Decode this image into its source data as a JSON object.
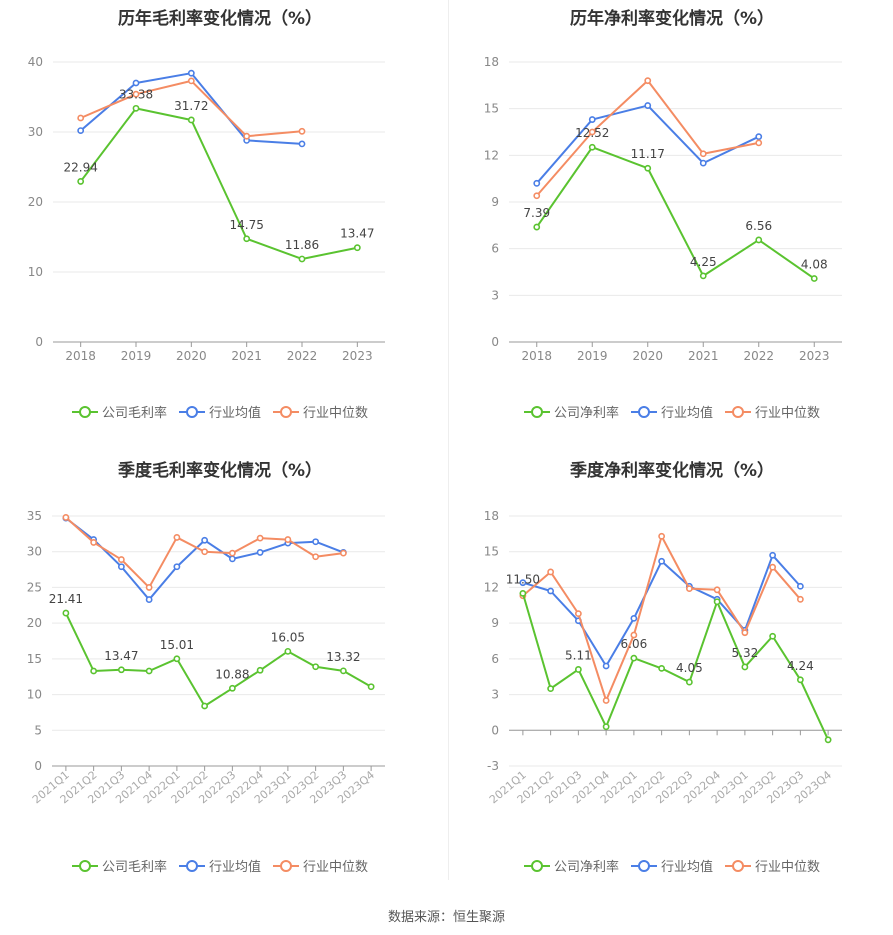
{
  "charts": [
    {
      "title": "历年毛利率变化情况（%）",
      "chart_data": {
        "type": "line",
        "categories": [
          "2018",
          "2019",
          "2020",
          "2021",
          "2022",
          "2023"
        ],
        "ylim": [
          0,
          40
        ],
        "yticks": [
          0,
          10,
          20,
          30,
          40
        ],
        "series": [
          {
            "name": "公司毛利率",
            "color": "#5ac330",
            "values": [
              22.94,
              33.38,
              31.72,
              14.75,
              11.86,
              13.47
            ],
            "labels": [
              "22.94",
              "33.38",
              "31.72",
              "14.75",
              "11.86",
              "13.47"
            ]
          },
          {
            "name": "行业均值",
            "color": "#4a7ee6",
            "values": [
              30.2,
              37.0,
              38.4,
              28.8,
              28.3,
              null
            ]
          },
          {
            "name": "行业中位数",
            "color": "#f48c63",
            "values": [
              32.0,
              35.4,
              37.3,
              29.4,
              30.1,
              null
            ]
          }
        ]
      }
    },
    {
      "title": "历年净利率变化情况（%）",
      "chart_data": {
        "type": "line",
        "categories": [
          "2018",
          "2019",
          "2020",
          "2021",
          "2022",
          "2023"
        ],
        "ylim": [
          0,
          18
        ],
        "yticks": [
          0,
          3,
          6,
          9,
          12,
          15,
          18
        ],
        "series": [
          {
            "name": "公司净利率",
            "color": "#5ac330",
            "values": [
              7.39,
              12.52,
              11.17,
              4.25,
              6.56,
              4.08
            ],
            "labels": [
              "7.39",
              "12.52",
              "11.17",
              "4.25",
              "6.56",
              "4.08"
            ]
          },
          {
            "name": "行业均值",
            "color": "#4a7ee6",
            "values": [
              10.2,
              14.3,
              15.2,
              11.5,
              13.2,
              null
            ]
          },
          {
            "name": "行业中位数",
            "color": "#f48c63",
            "values": [
              9.4,
              13.5,
              16.8,
              12.1,
              12.8,
              null
            ]
          }
        ]
      }
    },
    {
      "title": "季度毛利率变化情况（%）",
      "chart_data": {
        "type": "line",
        "categories": [
          "2021Q1",
          "2021Q2",
          "2021Q3",
          "2021Q4",
          "2022Q1",
          "2022Q2",
          "2022Q3",
          "2022Q4",
          "2023Q1",
          "2023Q2",
          "2023Q3",
          "2023Q4"
        ],
        "ylim": [
          0,
          35
        ],
        "yticks": [
          0,
          5,
          10,
          15,
          20,
          25,
          30,
          35
        ],
        "series": [
          {
            "name": "公司毛利率",
            "color": "#5ac330",
            "values": [
              21.41,
              13.3,
              13.47,
              13.3,
              15.01,
              8.4,
              10.88,
              13.4,
              16.05,
              13.9,
              13.32,
              11.1
            ],
            "labels": [
              "21.41",
              "",
              "13.47",
              "",
              "15.01",
              "",
              "10.88",
              "",
              "16.05",
              "",
              "13.32",
              ""
            ]
          },
          {
            "name": "行业均值",
            "color": "#4a7ee6",
            "values": [
              34.7,
              31.7,
              27.9,
              23.3,
              27.9,
              31.6,
              29.0,
              29.9,
              31.2,
              31.4,
              29.9,
              null
            ]
          },
          {
            "name": "行业中位数",
            "color": "#f48c63",
            "values": [
              34.8,
              31.3,
              28.9,
              25.0,
              32.0,
              30.0,
              29.8,
              31.9,
              31.7,
              29.3,
              29.8,
              null
            ]
          }
        ]
      }
    },
    {
      "title": "季度净利率变化情况（%）",
      "chart_data": {
        "type": "line",
        "categories": [
          "2021Q1",
          "2021Q2",
          "2021Q3",
          "2021Q4",
          "2022Q1",
          "2022Q2",
          "2022Q3",
          "2022Q4",
          "2023Q1",
          "2023Q2",
          "2023Q3",
          "2023Q4"
        ],
        "ylim": [
          -3,
          18
        ],
        "yticks": [
          -3,
          0,
          3,
          6,
          9,
          12,
          15,
          18
        ],
        "series": [
          {
            "name": "公司净利率",
            "color": "#5ac330",
            "values": [
              11.5,
              3.5,
              5.11,
              0.3,
              6.06,
              5.2,
              4.05,
              10.8,
              5.32,
              7.9,
              4.24,
              -0.8
            ],
            "labels": [
              "11.50",
              "",
              "5.11",
              "",
              "6.06",
              "",
              "4.05",
              "",
              "5.32",
              "",
              "4.24",
              ""
            ]
          },
          {
            "name": "行业均值",
            "color": "#4a7ee6",
            "values": [
              12.4,
              11.7,
              9.2,
              5.4,
              9.4,
              14.2,
              12.1,
              11.0,
              8.4,
              14.7,
              12.1,
              null
            ]
          },
          {
            "name": "行业中位数",
            "color": "#f48c63",
            "values": [
              11.3,
              13.3,
              9.8,
              2.5,
              8.0,
              16.3,
              11.9,
              11.8,
              8.2,
              13.7,
              11.0,
              null
            ]
          }
        ]
      }
    }
  ],
  "footer": "数据来源：恒生聚源"
}
